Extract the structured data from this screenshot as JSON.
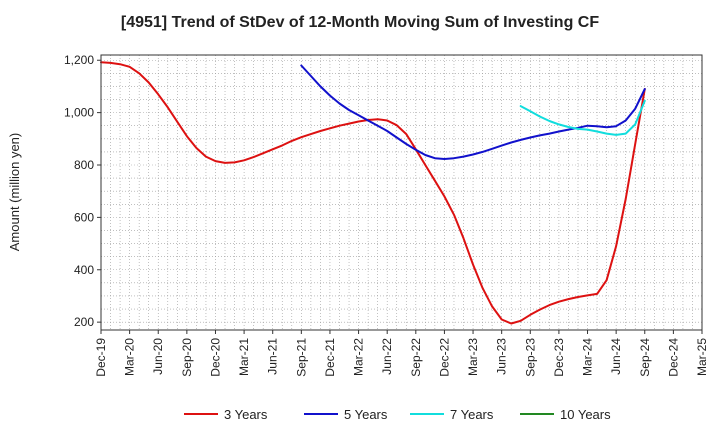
{
  "chart_data": {
    "type": "line",
    "title": "[4951]  Trend of StDev of 12-Month Moving Sum of Investing CF",
    "xlabel": "",
    "ylabel": "Amount (million yen)",
    "ylim": [
      170,
      1220
    ],
    "yticks": [
      200,
      400,
      600,
      800,
      1000,
      1200
    ],
    "ytick_labels": [
      "200",
      "400",
      "600",
      "800",
      "1,000",
      "1,200"
    ],
    "grid": true,
    "legend_position": "bottom",
    "x_tick_labels": [
      "Dec-19",
      "Mar-20",
      "Jun-20",
      "Sep-20",
      "Dec-20",
      "Mar-21",
      "Jun-21",
      "Sep-21",
      "Dec-21",
      "Mar-22",
      "Jun-22",
      "Sep-22",
      "Dec-22",
      "Mar-23",
      "Jun-23",
      "Sep-23",
      "Dec-23",
      "Mar-24",
      "Jun-24",
      "Sep-24",
      "Dec-24",
      "Mar-25"
    ],
    "x_start": "2019-12",
    "x_end": "2025-03",
    "series": [
      {
        "name": "3 Years",
        "color": "#dd1111",
        "x": [
          "2019-12",
          "2020-01",
          "2020-02",
          "2020-03",
          "2020-04",
          "2020-05",
          "2020-06",
          "2020-07",
          "2020-08",
          "2020-09",
          "2020-10",
          "2020-11",
          "2020-12",
          "2021-01",
          "2021-02",
          "2021-03",
          "2021-04",
          "2021-05",
          "2021-06",
          "2021-07",
          "2021-08",
          "2021-09",
          "2021-10",
          "2021-11",
          "2021-12",
          "2022-01",
          "2022-02",
          "2022-03",
          "2022-04",
          "2022-05",
          "2022-06",
          "2022-07",
          "2022-08",
          "2022-09",
          "2022-10",
          "2022-11",
          "2022-12",
          "2023-01",
          "2023-02",
          "2023-03",
          "2023-04",
          "2023-05",
          "2023-06",
          "2023-07",
          "2023-08",
          "2023-09",
          "2023-10",
          "2023-11",
          "2023-12",
          "2024-01",
          "2024-02",
          "2024-03",
          "2024-04",
          "2024-05",
          "2024-06",
          "2024-07",
          "2024-08",
          "2024-09"
        ],
        "values": [
          1192,
          1190,
          1185,
          1175,
          1150,
          1115,
          1070,
          1020,
          965,
          910,
          865,
          832,
          815,
          808,
          810,
          818,
          830,
          845,
          860,
          875,
          892,
          906,
          918,
          930,
          940,
          950,
          958,
          966,
          972,
          975,
          970,
          952,
          918,
          860,
          800,
          740,
          680,
          610,
          520,
          420,
          330,
          260,
          210,
          195,
          205,
          228,
          248,
          265,
          278,
          288,
          296,
          302,
          308,
          360,
          490,
          670,
          880,
          1090
        ]
      },
      {
        "name": "5 Years",
        "color": "#1111cc",
        "x": [
          "2021-09",
          "2021-10",
          "2021-11",
          "2021-12",
          "2022-01",
          "2022-02",
          "2022-03",
          "2022-04",
          "2022-05",
          "2022-06",
          "2022-07",
          "2022-08",
          "2022-09",
          "2022-10",
          "2022-11",
          "2022-12",
          "2023-01",
          "2023-02",
          "2023-03",
          "2023-04",
          "2023-05",
          "2023-06",
          "2023-07",
          "2023-08",
          "2023-09",
          "2023-10",
          "2023-11",
          "2023-12",
          "2024-01",
          "2024-02",
          "2024-03",
          "2024-04",
          "2024-05",
          "2024-06",
          "2024-07",
          "2024-08",
          "2024-09"
        ],
        "values": [
          1180,
          1140,
          1100,
          1065,
          1035,
          1010,
          990,
          970,
          950,
          930,
          905,
          880,
          858,
          838,
          826,
          823,
          826,
          832,
          840,
          850,
          862,
          874,
          886,
          896,
          905,
          913,
          920,
          928,
          935,
          942,
          950,
          948,
          944,
          948,
          970,
          1015,
          1090
        ]
      },
      {
        "name": "7 Years",
        "color": "#11dddd",
        "x": [
          "2023-08",
          "2023-09",
          "2023-10",
          "2023-11",
          "2023-12",
          "2024-01",
          "2024-02",
          "2024-03",
          "2024-04",
          "2024-05",
          "2024-06",
          "2024-07",
          "2024-08",
          "2024-09"
        ],
        "values": [
          1025,
          1005,
          985,
          968,
          955,
          945,
          938,
          935,
          928,
          920,
          915,
          920,
          955,
          1045
        ]
      },
      {
        "name": "10 Years",
        "color": "#228822",
        "x": [],
        "values": []
      }
    ]
  }
}
